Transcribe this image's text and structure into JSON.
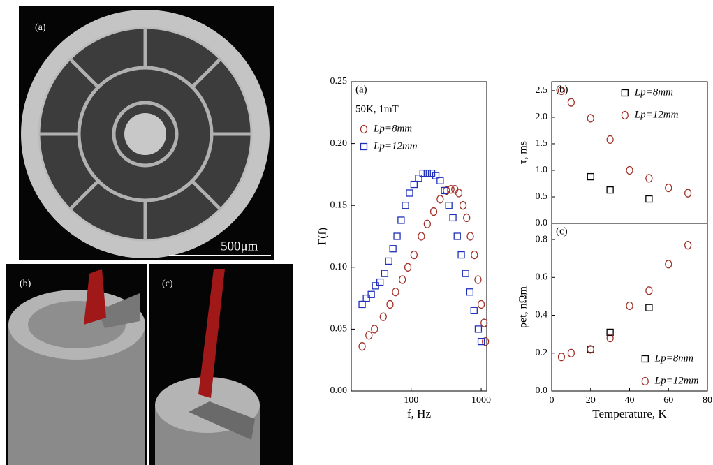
{
  "images": [
    {
      "label": "(a)",
      "scale_bar": "500μm"
    },
    {
      "label": "(b)"
    },
    {
      "label": "(c)"
    }
  ],
  "chart_data": [
    {
      "type": "scatter",
      "xscale": "log",
      "xlim": [
        14,
        1200
      ],
      "ylim": [
        0,
        0.25
      ],
      "xticks": [
        100,
        1000
      ],
      "yticks": [
        {
          "value": 0,
          "label": "0.00"
        },
        0.05,
        {
          "value": 0.1,
          "label": "0.10"
        },
        0.15,
        {
          "value": 0.2,
          "label": "0.20"
        },
        0.25
      ],
      "xlabel": "f, Hz",
      "ylabel": "Γ(f)",
      "annotations": [
        "(a)",
        "50K, 1mT"
      ],
      "legend": "upper left",
      "series": [
        {
          "name": "Lp=8mm",
          "color": "#a03028",
          "marker": "circle",
          "x": [
            20,
            25,
            30,
            40,
            50,
            60,
            75,
            90,
            110,
            140,
            170,
            210,
            260,
            320,
            370,
            420,
            480,
            550,
            620,
            700,
            800,
            900,
            1000,
            1100,
            1150
          ],
          "values": [
            0.036,
            0.045,
            0.05,
            0.06,
            0.07,
            0.08,
            0.09,
            0.1,
            0.11,
            0.125,
            0.135,
            0.145,
            0.155,
            0.162,
            0.163,
            0.163,
            0.16,
            0.15,
            0.14,
            0.125,
            0.11,
            0.09,
            0.07,
            0.055,
            0.04
          ]
        },
        {
          "name": "Lp=12mm",
          "color": "#2030b8",
          "marker": "square",
          "x": [
            20,
            23,
            27,
            31,
            36,
            42,
            48,
            55,
            63,
            72,
            83,
            95,
            110,
            128,
            148,
            170,
            196,
            225,
            260,
            300,
            345,
            395,
            455,
            520,
            600,
            690,
            790,
            910,
            1000
          ],
          "values": [
            0.07,
            0.075,
            0.078,
            0.085,
            0.088,
            0.095,
            0.105,
            0.115,
            0.125,
            0.138,
            0.15,
            0.16,
            0.167,
            0.172,
            0.176,
            0.176,
            0.176,
            0.174,
            0.17,
            0.162,
            0.15,
            0.14,
            0.125,
            0.11,
            0.095,
            0.08,
            0.065,
            0.05,
            0.04
          ]
        }
      ]
    },
    {
      "type": "scatter",
      "xlim": [
        0,
        80
      ],
      "ylim": [
        0,
        2.67
      ],
      "yticks": [
        {
          "value": 0,
          "label": "0.0"
        },
        0.5,
        {
          "value": 1,
          "label": "1.0"
        },
        1.5,
        {
          "value": 2,
          "label": "2.0"
        },
        2.5
      ],
      "ylabel": "τ, ms",
      "annotations": [
        "(b)"
      ],
      "legend": "upper right",
      "series": [
        {
          "name": "Lp=8mm",
          "color": "#000000",
          "marker": "square",
          "x": [
            20,
            30,
            50
          ],
          "values": [
            0.88,
            0.63,
            0.46
          ]
        },
        {
          "name": "Lp=12mm",
          "color": "#a03028",
          "marker": "circle",
          "x": [
            5,
            10,
            20,
            30,
            40,
            50,
            60,
            70
          ],
          "values": [
            2.5,
            2.28,
            1.98,
            1.58,
            1.0,
            0.85,
            0.67,
            0.57
          ]
        }
      ]
    },
    {
      "type": "scatter",
      "xlim": [
        0,
        80
      ],
      "ylim": [
        0,
        0.885
      ],
      "xticks": [
        0,
        20,
        40,
        60,
        80
      ],
      "yticks": [
        {
          "value": 0,
          "label": "0.0"
        },
        0.2,
        0.4,
        0.6,
        0.8
      ],
      "xlabel": "Temperature, K",
      "ylabel": "ρet, nΩm",
      "annotations": [
        "(c)"
      ],
      "legend": "lower right",
      "series": [
        {
          "name": "Lp=8mm",
          "color": "#000000",
          "marker": "square",
          "x": [
            20,
            30,
            50
          ],
          "values": [
            0.22,
            0.31,
            0.44
          ]
        },
        {
          "name": "Lp=12mm",
          "color": "#a03028",
          "marker": "circle",
          "x": [
            5,
            10,
            20,
            30,
            40,
            50,
            60,
            70
          ],
          "values": [
            0.18,
            0.2,
            0.22,
            0.28,
            0.45,
            0.53,
            0.67,
            0.77
          ]
        }
      ]
    }
  ]
}
